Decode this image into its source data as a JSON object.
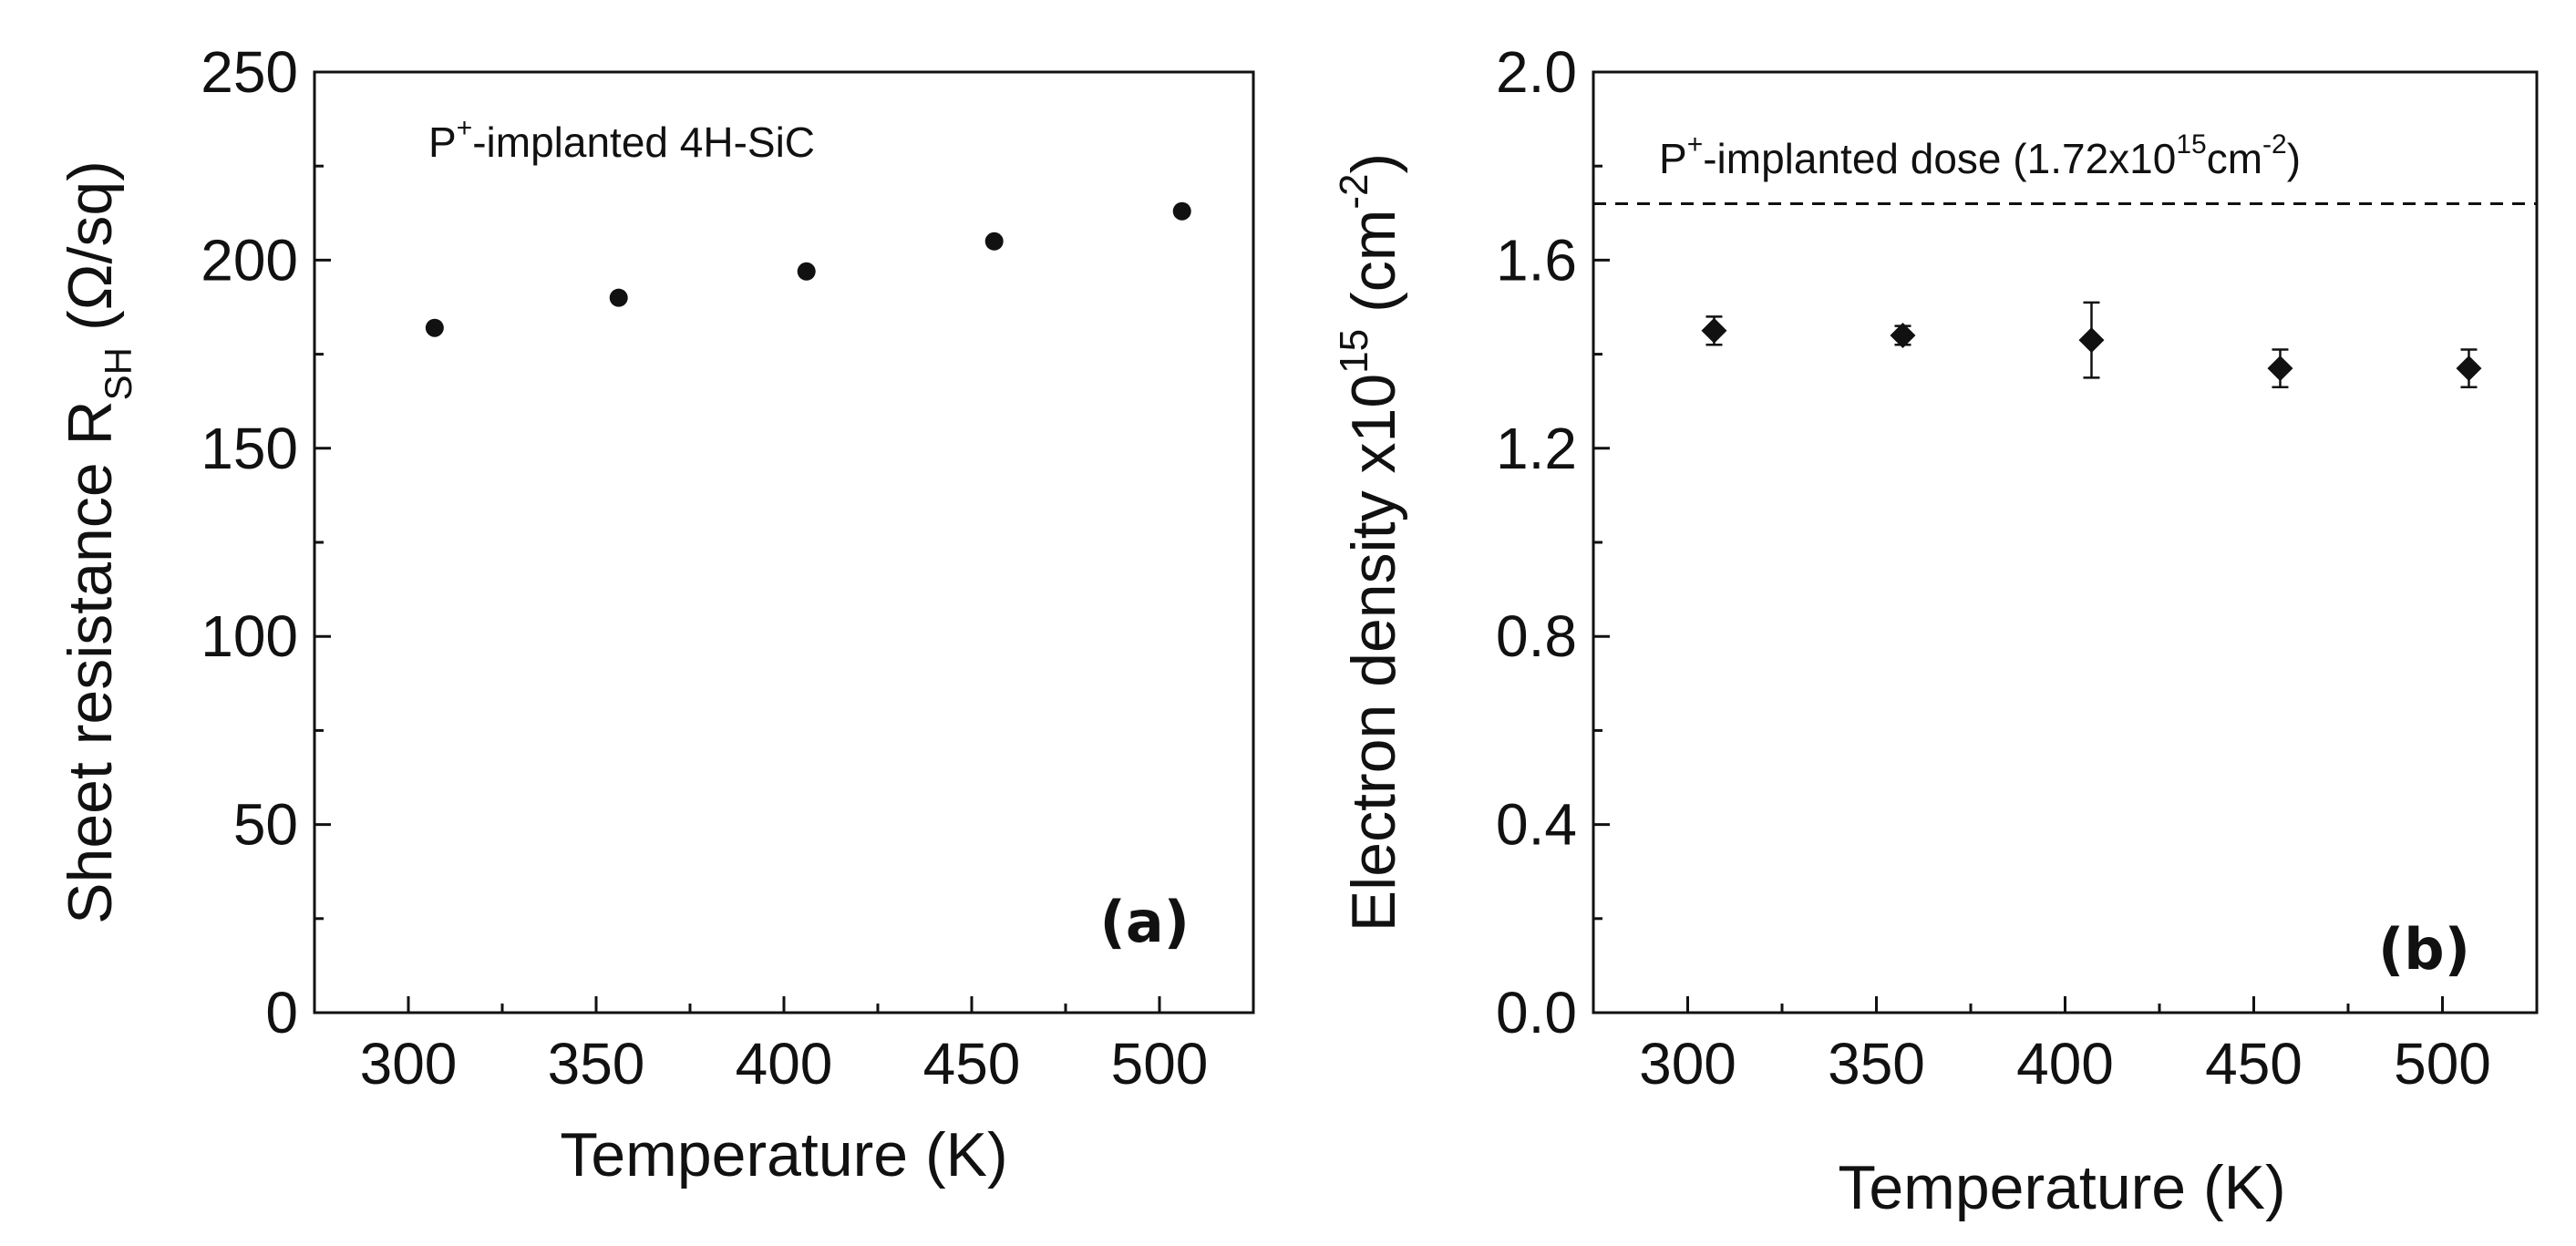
{
  "chart_data": [
    {
      "type": "scatter",
      "panel_label": "(a)",
      "annotation": {
        "base": "P",
        "sup": "+",
        "rest": "-implanted 4H-SiC"
      },
      "xlabel": "Temperature (K)",
      "ylabel": {
        "main": "Sheet resistance R",
        "sub": "SH",
        "unit": "(Ω/sq)"
      },
      "xlim": [
        275,
        525
      ],
      "ylim": [
        0,
        250
      ],
      "xticks": [
        300,
        350,
        400,
        450,
        500
      ],
      "yticks": [
        0,
        50,
        100,
        150,
        200,
        250
      ],
      "x_tick_labels": [
        "300",
        "350",
        "400",
        "450",
        "500"
      ],
      "y_tick_labels": [
        "0",
        "50",
        "100",
        "150",
        "200",
        "250"
      ],
      "marker": "circle",
      "series": [
        {
          "name": "Sheet resistance",
          "x": [
            307,
            356,
            406,
            456,
            506
          ],
          "y": [
            182,
            190,
            197,
            205,
            213
          ]
        }
      ]
    },
    {
      "type": "scatter",
      "panel_label": "(b)",
      "annotation": {
        "base": "P",
        "sup": "+",
        "rest": "-implanted dose (1.72x10",
        "sup2": "15",
        "rest2": "cm",
        "sup3": "-2",
        "rest3": ")"
      },
      "reference_line": {
        "y": 1.72,
        "style": "dashed"
      },
      "xlabel": "Temperature (K)",
      "ylabel": {
        "main": "Electron density x10",
        "sup": "15",
        "unit": "(cm",
        "unit_sup": "-2",
        "unit_end": ")"
      },
      "xlim": [
        275,
        525
      ],
      "ylim": [
        0.0,
        2.0
      ],
      "xticks": [
        300,
        350,
        400,
        450,
        500
      ],
      "yticks": [
        0.0,
        0.4,
        0.8,
        1.2,
        1.6,
        2.0
      ],
      "x_tick_labels": [
        "300",
        "350",
        "400",
        "450",
        "500"
      ],
      "y_tick_labels": [
        "0.0",
        "0.4",
        "0.8",
        "1.2",
        "1.6",
        "2.0"
      ],
      "marker": "diamond",
      "series": [
        {
          "name": "Electron density",
          "x": [
            307,
            357,
            407,
            457,
            507
          ],
          "y": [
            1.45,
            1.44,
            1.43,
            1.37,
            1.37
          ],
          "yerr": [
            0.03,
            0.02,
            0.08,
            0.04,
            0.04
          ]
        }
      ]
    }
  ]
}
